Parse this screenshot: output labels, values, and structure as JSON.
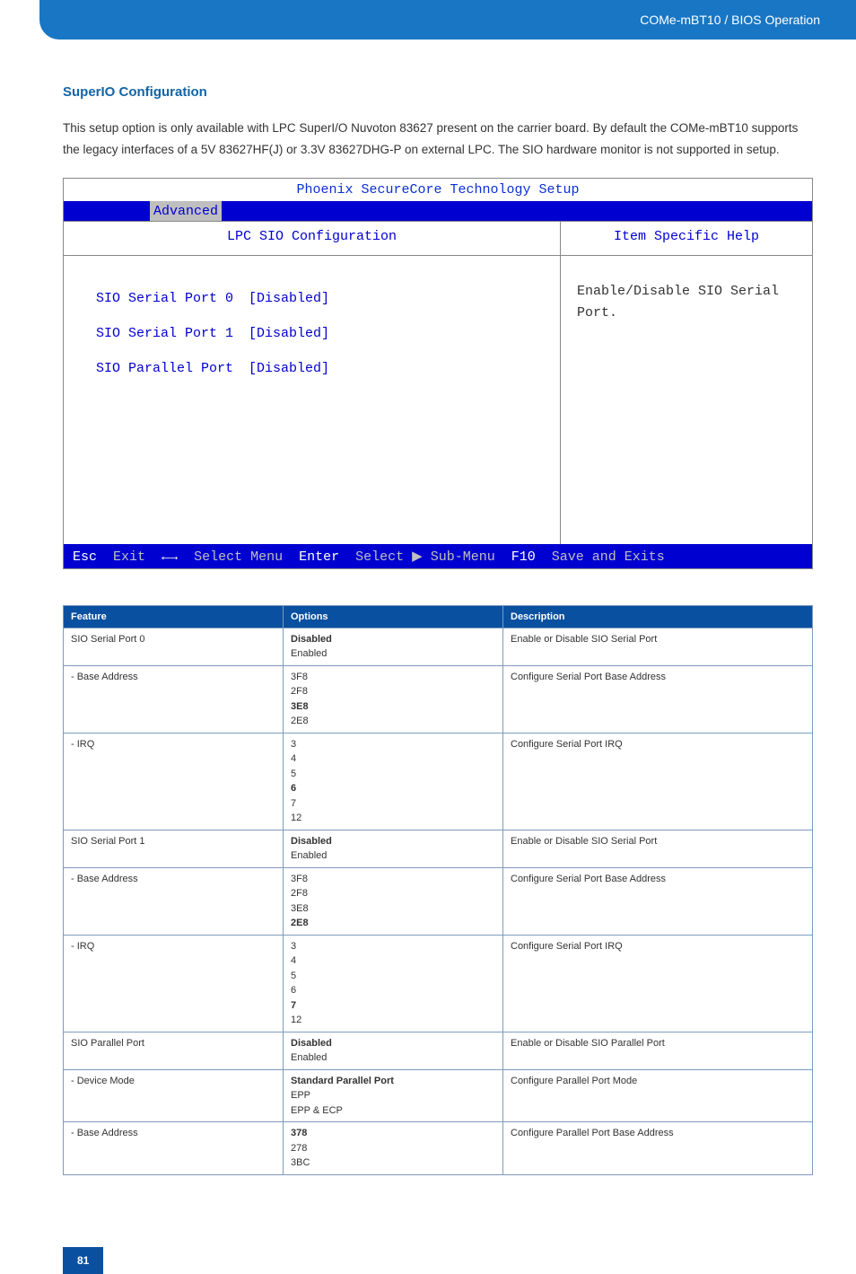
{
  "header": {
    "breadcrumb": "COMe-mBT10 / BIOS Operation"
  },
  "section": {
    "title": "SuperIO Configuration",
    "para": "This setup option is only available with LPC SuperI/O Nuvoton 83627 present on the carrier board. By default the COMe-mBT10 supports the legacy interfaces of a 5V 83627HF(J) or 3.3V 83627DHG-P on external LPC. The SIO hardware monitor is not supported in setup."
  },
  "bios": {
    "title": "Phoenix SecureCore Technology Setup",
    "active_tab": "Advanced",
    "left_header": "LPC SIO Configuration",
    "right_header": "Item Specific Help",
    "rows": [
      {
        "label": "SIO Serial Port 0",
        "value": "[Disabled]"
      },
      {
        "label": "SIO Serial Port 1",
        "value": "[Disabled]"
      },
      {
        "label": "SIO Parallel Port",
        "value": "[Disabled]"
      }
    ],
    "help_text": "Enable/Disable SIO Serial Port.",
    "footer": {
      "esc": "Esc",
      "exit": "Exit",
      "arrows": "←→",
      "select_menu": "Select Menu",
      "enter": "Enter",
      "select_sub": "Select ▶ Sub-Menu",
      "f10": "F10",
      "save": "Save and Exits"
    },
    "colors": {
      "title_fg": "#0a2fd6",
      "tab_bg": "#0000d0",
      "tab_active_bg": "#bfbfbf",
      "body_fg": "#0000d0",
      "footer_bg": "#0000d0",
      "footer_key_fg": "#ffffff",
      "footer_txt_fg": "#bfbfbf"
    }
  },
  "table": {
    "headers": [
      "Feature",
      "Options",
      "Description"
    ],
    "header_bg": "#0a50a0",
    "header_fg": "#ffffff",
    "border_color": "#7d9bbd",
    "rows": [
      {
        "feature": "SIO Serial Port 0",
        "options": [
          {
            "t": "Disabled",
            "b": true
          },
          {
            "t": "Enabled"
          }
        ],
        "desc": "Enable or Disable SIO Serial Port"
      },
      {
        "feature": "- Base Address",
        "options": [
          {
            "t": "3F8"
          },
          {
            "t": "2F8"
          },
          {
            "t": "3E8",
            "b": true
          },
          {
            "t": "2E8"
          }
        ],
        "desc": "Configure Serial Port Base Address"
      },
      {
        "feature": "- IRQ",
        "options": [
          {
            "t": "3"
          },
          {
            "t": "4"
          },
          {
            "t": "5"
          },
          {
            "t": "6",
            "b": true
          },
          {
            "t": "7"
          },
          {
            "t": "12"
          }
        ],
        "desc": "Configure Serial Port IRQ"
      },
      {
        "feature": "SIO Serial Port 1",
        "options": [
          {
            "t": "Disabled",
            "b": true
          },
          {
            "t": "Enabled"
          }
        ],
        "desc": "Enable or Disable SIO Serial Port"
      },
      {
        "feature": "- Base Address",
        "options": [
          {
            "t": "3F8"
          },
          {
            "t": "2F8"
          },
          {
            "t": "3E8"
          },
          {
            "t": "2E8",
            "b": true
          }
        ],
        "desc": "Configure Serial Port Base Address"
      },
      {
        "feature": "- IRQ",
        "options": [
          {
            "t": "3"
          },
          {
            "t": "4"
          },
          {
            "t": "5"
          },
          {
            "t": "6"
          },
          {
            "t": "7",
            "b": true
          },
          {
            "t": "12"
          }
        ],
        "desc": "Configure Serial Port IRQ"
      },
      {
        "feature": "SIO Parallel Port",
        "options": [
          {
            "t": "Disabled",
            "b": true
          },
          {
            "t": "Enabled"
          }
        ],
        "desc": "Enable or Disable SIO Parallel Port"
      },
      {
        "feature": "- Device Mode",
        "options": [
          {
            "t": "Standard Parallel Port",
            "b": true
          },
          {
            "t": "EPP"
          },
          {
            "t": "EPP & ECP"
          }
        ],
        "desc": "Configure Parallel Port Mode"
      },
      {
        "feature": "- Base Address",
        "options": [
          {
            "t": "378",
            "b": true
          },
          {
            "t": "278"
          },
          {
            "t": "3BC"
          }
        ],
        "desc": "Configure Parallel Port Base Address"
      }
    ]
  },
  "page_number": "81"
}
